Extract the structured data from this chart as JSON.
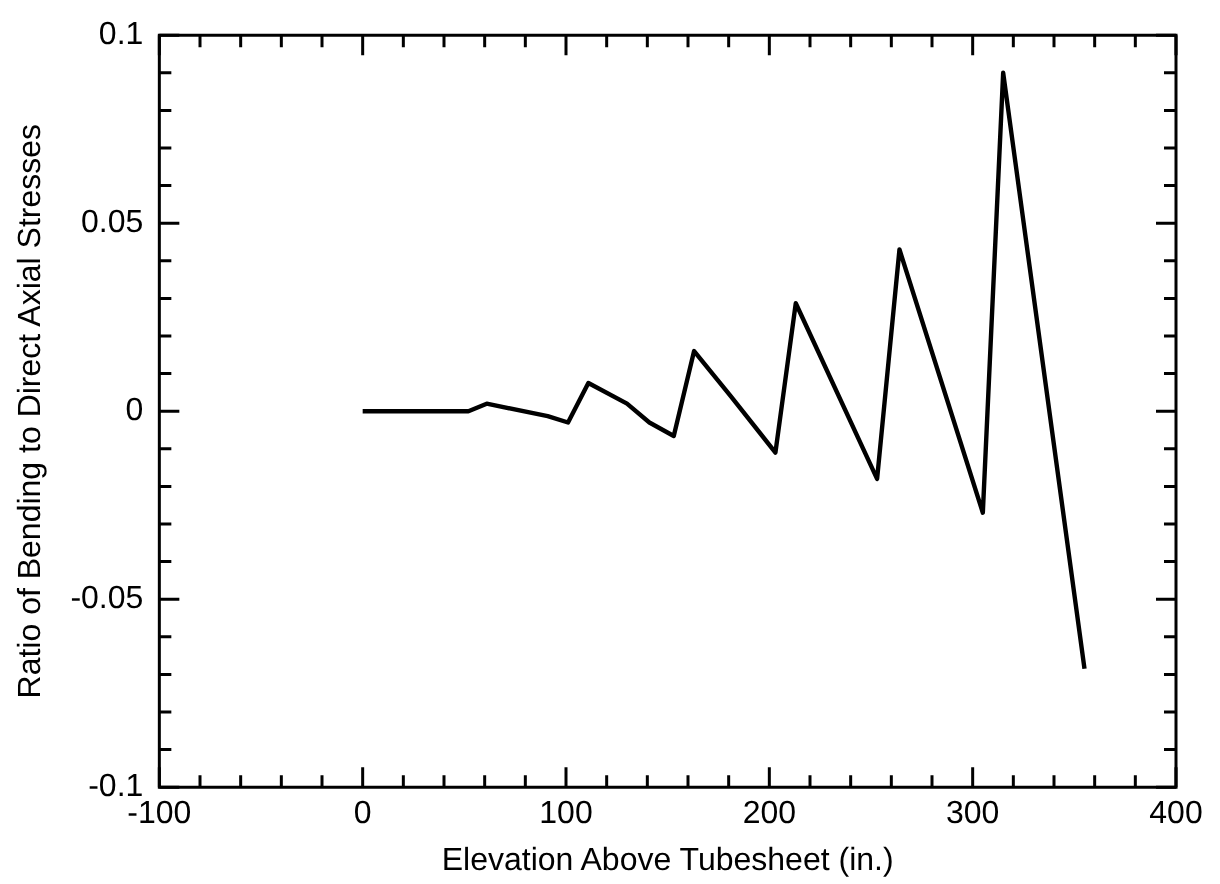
{
  "chart_data": {
    "type": "line",
    "xlabel": "Elevation Above Tubesheet (in.)",
    "ylabel": "Ratio of Bending to Direct Axial Stresses",
    "x": [
      0,
      10,
      20,
      30,
      40,
      52,
      61,
      91,
      101,
      111,
      130,
      141,
      153,
      163,
      181,
      203,
      213,
      253,
      264,
      305,
      315,
      355
    ],
    "series": [
      {
        "color": "#000000",
        "values": [
          0,
          0,
          0,
          0,
          0,
          0,
          0.002,
          -0.0013,
          -0.003,
          0.0075,
          0.002,
          -0.003,
          -0.0066,
          0.016,
          0.004,
          -0.011,
          0.0287,
          -0.018,
          0.043,
          -0.027,
          0.09,
          -0.0685
        ]
      }
    ],
    "xlim": [
      -100,
      400
    ],
    "xticks": [
      -100,
      {
        "value": -80,
        "label": null
      },
      {
        "value": -60,
        "label": null
      },
      {
        "value": -40,
        "label": null
      },
      {
        "value": -20,
        "label": null
      },
      0,
      {
        "value": 20,
        "label": null
      },
      {
        "value": 40,
        "label": null
      },
      {
        "value": 60,
        "label": null
      },
      {
        "value": 80,
        "label": null
      },
      100,
      {
        "value": 120,
        "label": null
      },
      {
        "value": 140,
        "label": null
      },
      {
        "value": 160,
        "label": null
      },
      {
        "value": 180,
        "label": null
      },
      200,
      {
        "value": 220,
        "label": null
      },
      {
        "value": 240,
        "label": null
      },
      {
        "value": 260,
        "label": null
      },
      {
        "value": 280,
        "label": null
      },
      300,
      {
        "value": 320,
        "label": null
      },
      {
        "value": 340,
        "label": null
      },
      {
        "value": 360,
        "label": null
      },
      {
        "value": 380,
        "label": null
      },
      400
    ],
    "ylim": [
      -0.1,
      0.1
    ],
    "yticks": [
      -0.1,
      {
        "value": -0.09,
        "label": null
      },
      {
        "value": -0.08,
        "label": null
      },
      {
        "value": -0.07,
        "label": null
      },
      {
        "value": -0.06,
        "label": null
      },
      -0.05,
      {
        "value": -0.04,
        "label": null
      },
      {
        "value": -0.03,
        "label": null
      },
      {
        "value": -0.02,
        "label": null
      },
      {
        "value": -0.01,
        "label": null
      },
      0,
      {
        "value": 0.01,
        "label": null
      },
      {
        "value": 0.02,
        "label": null
      },
      {
        "value": 0.03,
        "label": null
      },
      {
        "value": 0.04,
        "label": null
      },
      0.05,
      {
        "value": 0.06,
        "label": null
      },
      {
        "value": 0.07,
        "label": null
      },
      {
        "value": 0.08,
        "label": null
      },
      {
        "value": 0.09,
        "label": null
      },
      0.1
    ],
    "grid": false,
    "legend": false,
    "marker": "none",
    "line_style": "solid"
  }
}
